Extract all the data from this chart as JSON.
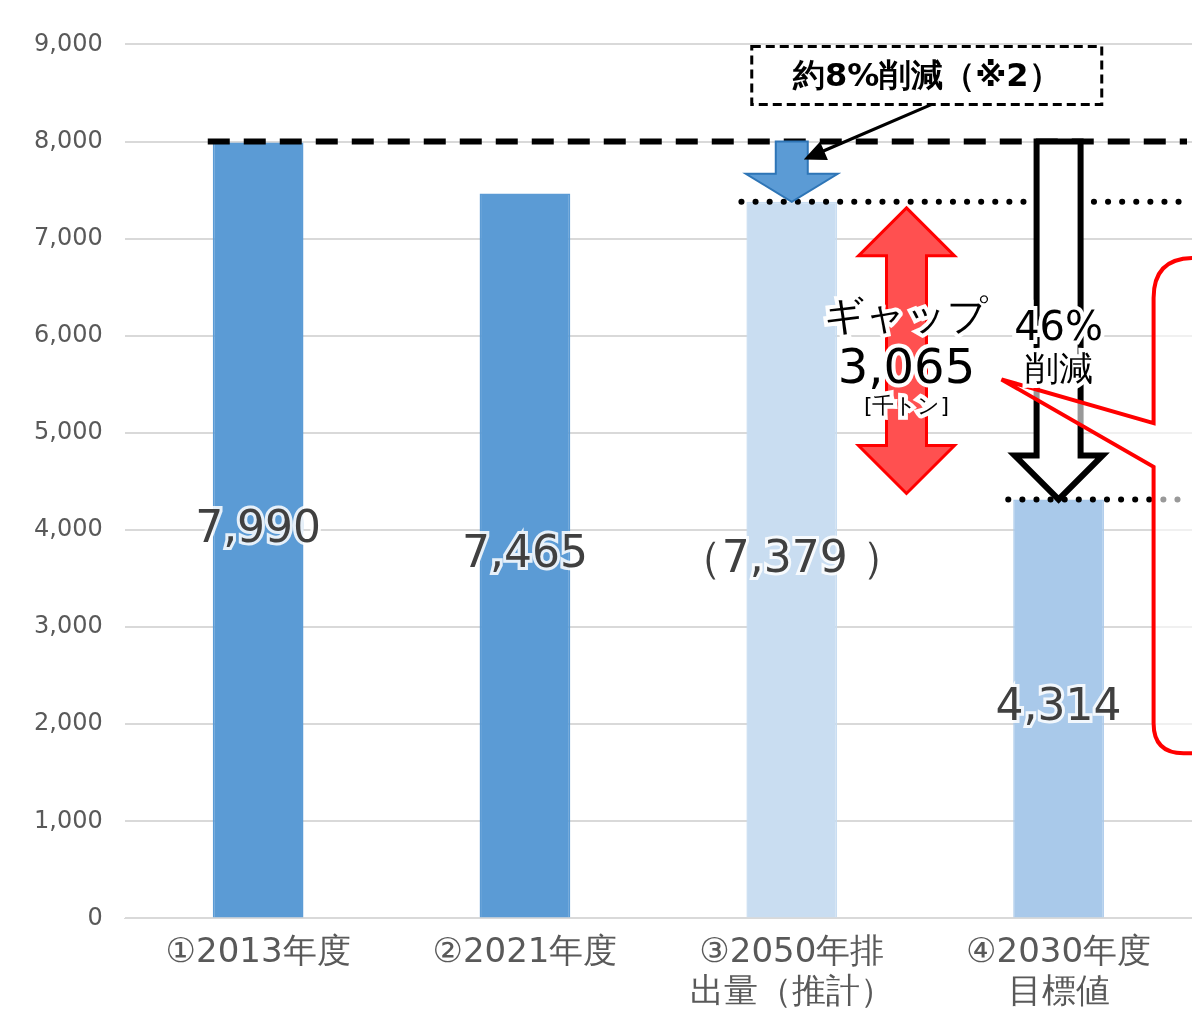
{
  "chart_data": {
    "type": "bar",
    "categories": [
      "①2013年度",
      "②2021年度",
      "③2050年排出量（推計）",
      "④2030年度目標値"
    ],
    "values": [
      7990,
      7465,
      7379,
      4314
    ],
    "colors": [
      "#5b9bd5",
      "#5b9bd5",
      "#c9ddf1",
      "#a9c9ea"
    ],
    "value_labels": [
      "7,990",
      "7,465",
      "（7,379 ）",
      "4,314"
    ],
    "ylim": [
      0,
      9000
    ],
    "yticks": [
      {
        "value": 0,
        "label": "0"
      },
      {
        "value": 1000,
        "label": "1,000"
      },
      {
        "value": 2000,
        "label": "2,000"
      },
      {
        "value": 3000,
        "label": "3,000"
      },
      {
        "value": 4000,
        "label": "4,000"
      },
      {
        "value": 5000,
        "label": "5,000"
      },
      {
        "value": 6000,
        "label": "6,000"
      },
      {
        "value": 7000,
        "label": "7,000"
      },
      {
        "value": 8000,
        "label": "8,000"
      },
      {
        "value": 9000,
        "label": "9,000"
      }
    ],
    "grid": "y",
    "legend": false,
    "ref_lines": [
      {
        "axis": "y",
        "value": 8000,
        "color": "#000000",
        "line_style": "dashed"
      },
      {
        "axis": "y",
        "value": 7379,
        "color": "#000000",
        "line_style": "dotted"
      },
      {
        "axis": "y",
        "value": 4314,
        "color": "#000000",
        "line_style": "dotted"
      }
    ],
    "annotations": [
      "約8%削減（※2）",
      "ギャップ\n3,065\n[千トン]",
      "46%\n削減"
    ]
  }
}
